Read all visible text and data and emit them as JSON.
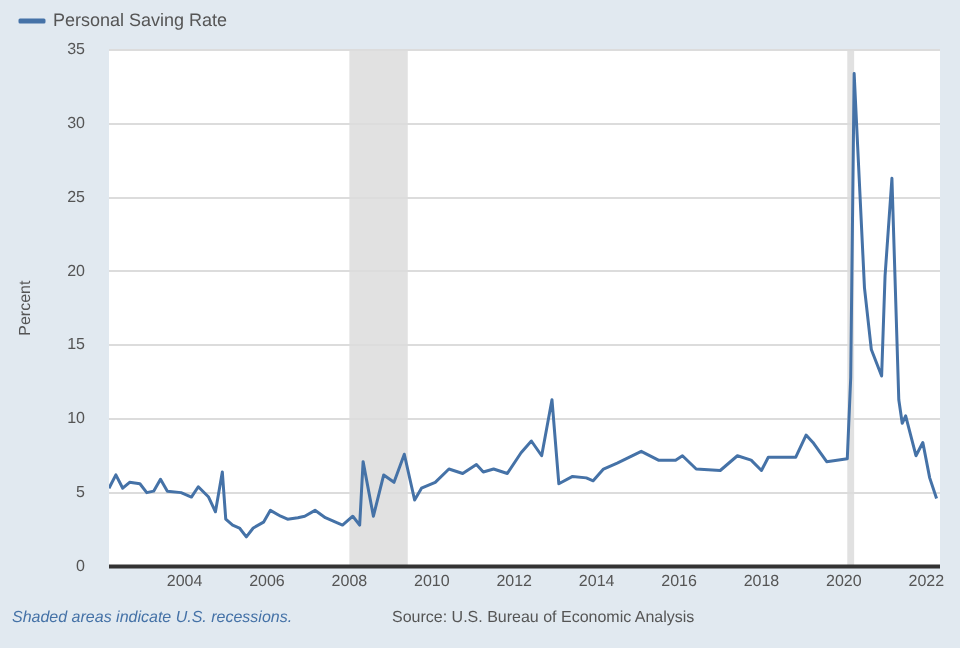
{
  "chart_data": {
    "type": "line",
    "ylabel": "Percent",
    "legend": "top left",
    "grid": "y",
    "marker": "none",
    "line_style": "solid",
    "xlim": [
      "2002-03",
      "2022-05"
    ],
    "xticks": [
      "2004",
      "2006",
      "2008",
      "2010",
      "2012",
      "2014",
      "2016",
      "2018",
      "2020",
      "2022"
    ],
    "ylim": [
      0,
      35
    ],
    "yticks": [
      0,
      5,
      10,
      15,
      20,
      25,
      30,
      35
    ],
    "bands": [
      {
        "axis": "x",
        "from": "2008-01",
        "to": "2009-06",
        "color": "#e1e1e1"
      },
      {
        "axis": "x",
        "from": "2020-02",
        "to": "2020-04",
        "color": "#e1e1e1"
      }
    ],
    "annotations": [
      "Shaded areas indicate U.S. recessions.",
      "Source: U.S. Bureau of Economic Analysis"
    ],
    "series": [
      {
        "name": "Personal Saving Rate",
        "color": "#4572a7",
        "x": [
          "2002-03",
          "2002-05",
          "2002-07",
          "2002-09",
          "2002-12",
          "2003-02",
          "2003-04",
          "2003-06",
          "2003-08",
          "2003-12",
          "2004-03",
          "2004-05",
          "2004-08",
          "2004-10",
          "2004-12",
          "2005-01",
          "2005-03",
          "2005-05",
          "2005-07",
          "2005-09",
          "2005-12",
          "2006-02",
          "2006-05",
          "2006-07",
          "2006-10",
          "2006-12",
          "2007-03",
          "2007-06",
          "2007-09",
          "2007-11",
          "2008-02",
          "2008-04",
          "2008-05",
          "2008-08",
          "2008-11",
          "2009-02",
          "2009-05",
          "2009-08",
          "2009-10",
          "2010-02",
          "2010-06",
          "2010-10",
          "2011-02",
          "2011-04",
          "2011-07",
          "2011-11",
          "2012-03",
          "2012-06",
          "2012-09",
          "2012-12",
          "2013-02",
          "2013-06",
          "2013-10",
          "2013-12",
          "2014-03",
          "2014-07",
          "2015-02",
          "2015-07",
          "2015-12",
          "2016-02",
          "2016-06",
          "2017-01",
          "2017-06",
          "2017-10",
          "2018-01",
          "2018-03",
          "2018-11",
          "2019-02",
          "2019-04",
          "2019-08",
          "2020-02",
          "2020-03",
          "2020-04",
          "2020-07",
          "2020-09",
          "2020-12",
          "2021-01",
          "2021-03",
          "2021-05",
          "2021-06",
          "2021-07",
          "2021-10",
          "2021-12",
          "2022-02",
          "2022-04"
        ],
        "values": [
          5.3,
          6.2,
          5.3,
          5.7,
          5.6,
          5.0,
          5.1,
          5.9,
          5.1,
          5.0,
          4.7,
          5.4,
          4.7,
          3.7,
          6.4,
          3.2,
          2.8,
          2.6,
          2.0,
          2.6,
          3.0,
          3.8,
          3.4,
          3.2,
          3.3,
          3.4,
          3.8,
          3.3,
          3.0,
          2.8,
          3.4,
          2.8,
          7.1,
          3.4,
          6.2,
          5.7,
          7.6,
          4.5,
          5.3,
          5.7,
          6.6,
          6.3,
          6.9,
          6.4,
          6.6,
          6.3,
          7.7,
          8.5,
          7.5,
          11.3,
          5.6,
          6.1,
          6.0,
          5.8,
          6.6,
          7.0,
          7.8,
          7.2,
          7.2,
          7.5,
          6.6,
          6.5,
          7.5,
          7.2,
          6.5,
          7.4,
          7.4,
          8.9,
          8.4,
          7.1,
          7.3,
          12.8,
          33.4,
          18.9,
          14.7,
          12.9,
          19.7,
          26.3,
          11.3,
          9.7,
          10.2,
          7.5,
          8.4,
          6.0,
          4.6
        ]
      }
    ]
  }
}
